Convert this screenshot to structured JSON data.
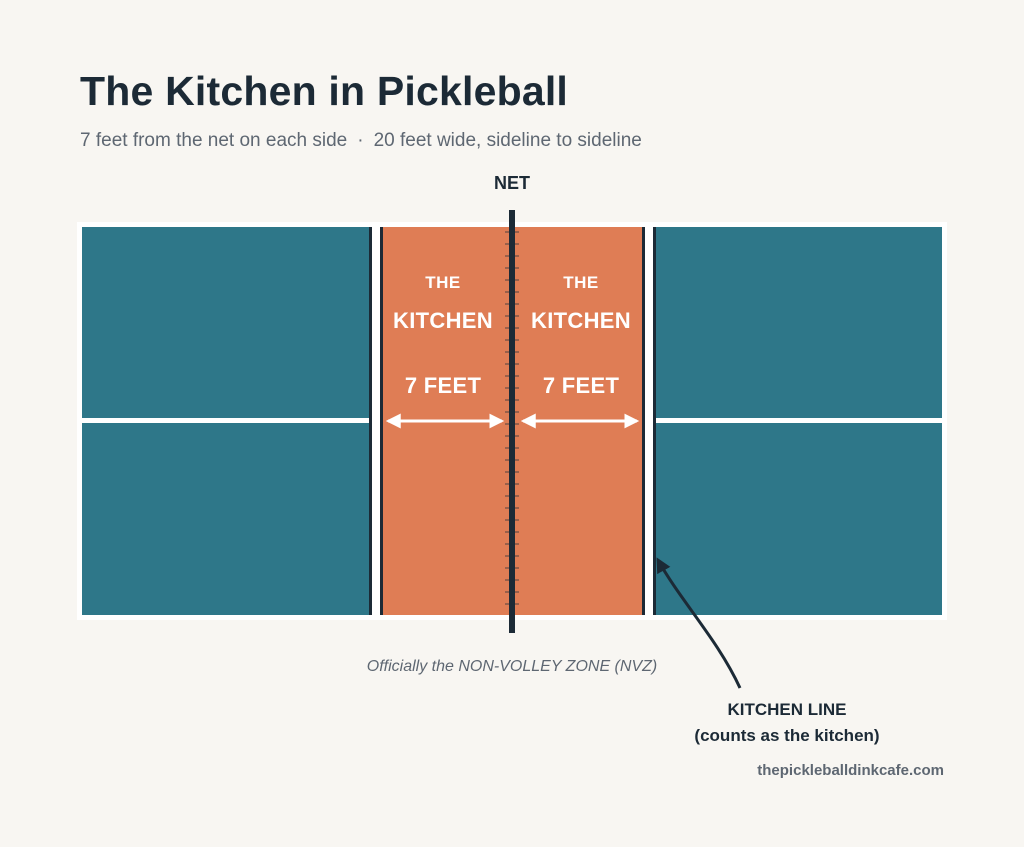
{
  "title": "The Kitchen in Pickleball",
  "subtitle": {
    "part1": "7 feet from the net on each side",
    "separator": "·",
    "part2": "20 feet wide, sideline to sideline"
  },
  "net_label": "NET",
  "kitchen_left": {
    "the": "THE",
    "name": "KITCHEN",
    "distance": "7 FEET"
  },
  "kitchen_right": {
    "the": "THE",
    "name": "KITCHEN",
    "distance": "7 FEET"
  },
  "nvz_note": "Officially the NON-VOLLEY ZONE (NVZ)",
  "callout": {
    "line1": "KITCHEN LINE",
    "line2": "(counts as the kitchen)"
  },
  "credit": "thepickleballdinkcafe.com",
  "colors": {
    "background": "#f8f6f2",
    "court": "#2e7789",
    "kitchen": "#df7d55",
    "lines": "#ffffff",
    "net": "#1c2a36",
    "text_dark": "#1c2a36",
    "text_muted": "#5e6772"
  }
}
